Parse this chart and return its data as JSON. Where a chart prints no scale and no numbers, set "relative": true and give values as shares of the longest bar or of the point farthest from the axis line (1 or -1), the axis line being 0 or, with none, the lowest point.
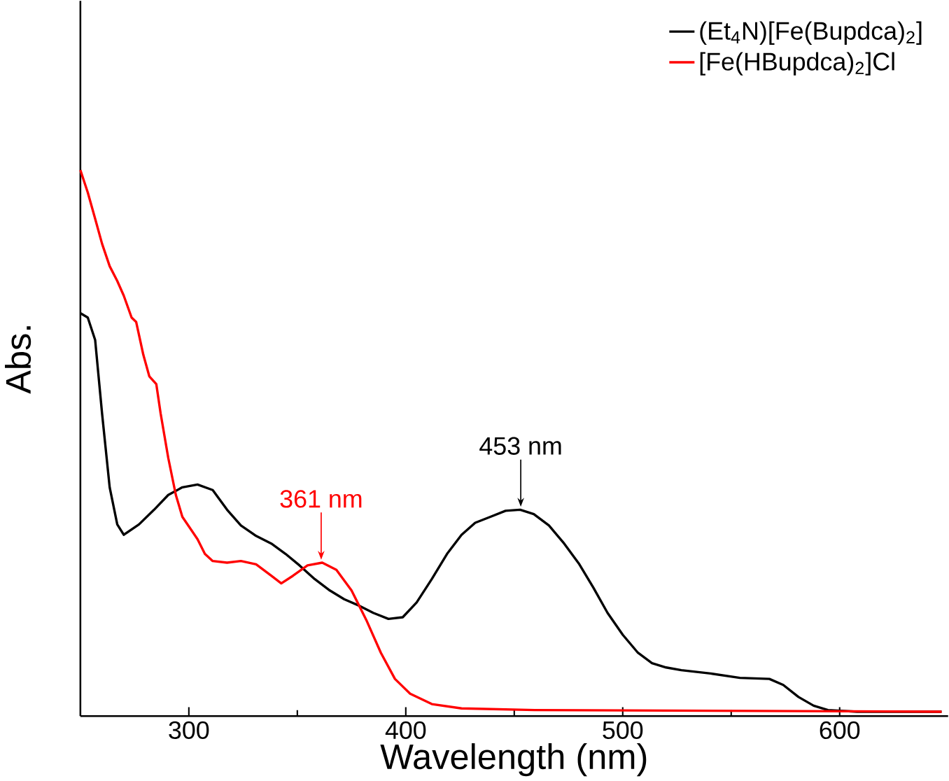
{
  "chart_data": {
    "type": "line",
    "relative": true,
    "xlabel": "Wavelength (nm)",
    "ylabel": "Abs.",
    "xlim": [
      250,
      650
    ],
    "xticks": [
      300,
      400,
      500,
      600
    ],
    "legend": "top right",
    "tick_labels": "x",
    "series": [
      {
        "name": "(Et$_{4}$N)[Fe(Bupdca)$_{2}$]",
        "color": "#000000",
        "x": [
          250,
          253.4,
          256.8,
          260,
          263.5,
          267,
          270,
          277,
          284,
          290.5,
          297,
          304,
          311,
          317.6,
          324,
          331,
          338,
          344.6,
          351,
          358,
          365,
          371.6,
          378,
          385,
          392,
          398.6,
          405,
          412,
          419,
          425.7,
          432,
          439,
          446,
          452.7,
          459,
          466,
          473,
          480,
          486.5,
          493,
          500,
          507,
          513.5,
          520,
          527,
          540.5,
          554,
          567.6,
          574,
          581,
          588,
          594.6,
          608,
          635,
          647
        ],
        "values": [
          0.738,
          0.73,
          0.689,
          0.554,
          0.419,
          0.351,
          0.332,
          0.351,
          0.378,
          0.405,
          0.419,
          0.424,
          0.414,
          0.378,
          0.349,
          0.33,
          0.316,
          0.297,
          0.276,
          0.251,
          0.23,
          0.214,
          0.203,
          0.189,
          0.178,
          0.181,
          0.208,
          0.251,
          0.297,
          0.332,
          0.354,
          0.365,
          0.376,
          0.378,
          0.37,
          0.349,
          0.316,
          0.278,
          0.235,
          0.189,
          0.149,
          0.116,
          0.097,
          0.089,
          0.084,
          0.078,
          0.07,
          0.068,
          0.057,
          0.035,
          0.019,
          0.011,
          0.008,
          0.008,
          0.008
        ]
      },
      {
        "name": "[Fe(HBupdca)$_{2}$]Cl",
        "color": "#ff0000",
        "x": [
          250,
          253.4,
          256.8,
          260,
          263.5,
          267,
          270,
          273.6,
          275.7,
          279,
          281.8,
          285,
          287,
          290.5,
          294,
          297,
          304,
          307.4,
          311,
          317.6,
          324,
          331,
          338,
          342.6,
          348,
          354.7,
          361.5,
          368,
          375,
          381.8,
          388.5,
          395,
          402,
          412,
          425.7,
          459.5,
          647
        ],
        "values": [
          1.0,
          0.959,
          0.911,
          0.865,
          0.824,
          0.797,
          0.77,
          0.73,
          0.722,
          0.662,
          0.622,
          0.608,
          0.554,
          0.473,
          0.405,
          0.365,
          0.324,
          0.297,
          0.284,
          0.281,
          0.284,
          0.278,
          0.257,
          0.243,
          0.257,
          0.276,
          0.281,
          0.268,
          0.23,
          0.176,
          0.116,
          0.068,
          0.041,
          0.022,
          0.014,
          0.011,
          0.008
        ]
      }
    ],
    "annotations": [
      {
        "text": "361 nm",
        "x": 361,
        "y": 0.281
      },
      {
        "text": "453 nm",
        "x": 453,
        "y": 0.378
      }
    ]
  }
}
